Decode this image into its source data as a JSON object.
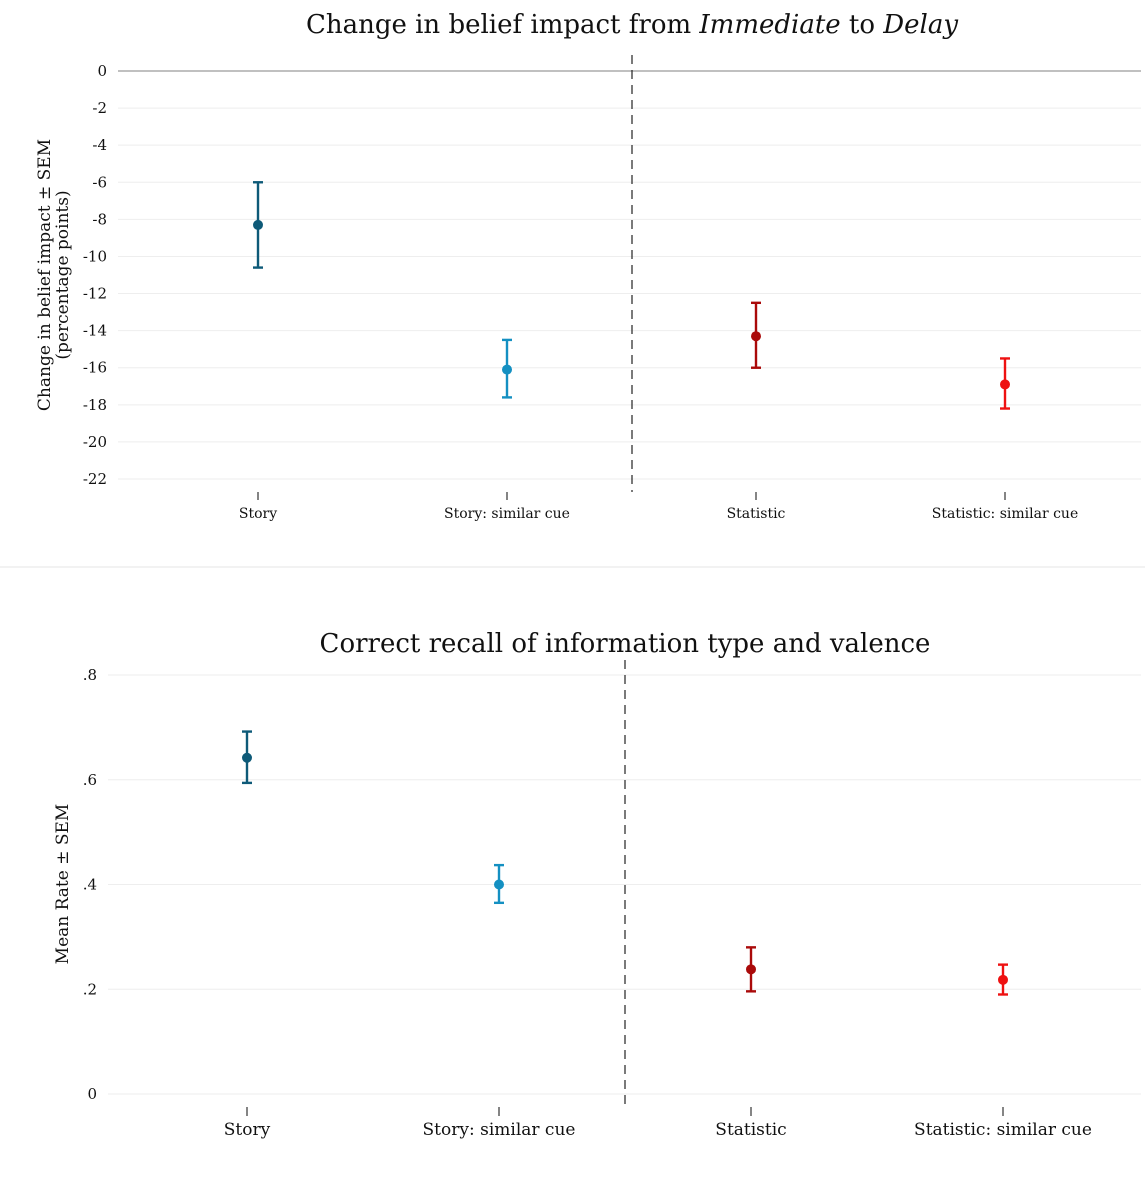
{
  "chart_data": [
    {
      "type": "scatter",
      "title_parts": [
        {
          "text": "Change in belief impact from ",
          "italic": false
        },
        {
          "text": "Immediate",
          "italic": true
        },
        {
          "text": " to ",
          "italic": false
        },
        {
          "text": "Delay",
          "italic": true
        }
      ],
      "ylabel_lines": [
        "Change in belief impact ± SEM",
        "(percentage points)"
      ],
      "ylim": [
        -22,
        0
      ],
      "yticks": [
        {
          "value": 0,
          "label": "0"
        },
        {
          "value": -2,
          "label": "-2"
        },
        {
          "value": -4,
          "label": "-4"
        },
        {
          "value": -6,
          "label": "-6"
        },
        {
          "value": -8,
          "label": "-8"
        },
        {
          "value": -10,
          "label": "-10"
        },
        {
          "value": -12,
          "label": "-12"
        },
        {
          "value": -14,
          "label": "-14"
        },
        {
          "value": -16,
          "label": "-16"
        },
        {
          "value": -18,
          "label": "-18"
        },
        {
          "value": -20,
          "label": "-20"
        },
        {
          "value": -22,
          "label": "-22"
        }
      ],
      "categories": [
        "Story",
        "Story: similar cue",
        "Statistic",
        "Statistic: similar cue"
      ],
      "points": [
        {
          "category": "Story",
          "value": -8.3,
          "low": -10.6,
          "high": -6.0,
          "color": "#0e5a78"
        },
        {
          "category": "Story: similar cue",
          "value": -16.1,
          "low": -17.6,
          "high": -14.5,
          "color": "#1490c2"
        },
        {
          "category": "Statistic",
          "value": -14.3,
          "low": -16.0,
          "high": -12.5,
          "color": "#aa0a0a"
        },
        {
          "category": "Statistic: similar cue",
          "value": -16.9,
          "low": -18.2,
          "high": -15.5,
          "color": "#ee1111"
        }
      ],
      "grid": true,
      "separator": "dashed vertical line between Story: similar cue and Statistic"
    },
    {
      "type": "scatter",
      "title_parts": [
        {
          "text": "Correct recall of information type and valence",
          "italic": false
        }
      ],
      "ylabel_lines": [
        "Mean Rate ± SEM"
      ],
      "ylim": [
        0,
        0.8
      ],
      "yticks": [
        {
          "value": 0,
          "label": "0"
        },
        {
          "value": 0.2,
          "label": ".2"
        },
        {
          "value": 0.4,
          "label": ".4"
        },
        {
          "value": 0.6,
          "label": ".6"
        },
        {
          "value": 0.8,
          "label": ".8"
        }
      ],
      "categories": [
        "Story",
        "Story: similar cue",
        "Statistic",
        "Statistic: similar cue"
      ],
      "points": [
        {
          "category": "Story",
          "value": 0.642,
          "low": 0.594,
          "high": 0.692,
          "color": "#0e5a78"
        },
        {
          "category": "Story: similar cue",
          "value": 0.4,
          "low": 0.365,
          "high": 0.437,
          "color": "#1490c2"
        },
        {
          "category": "Statistic",
          "value": 0.238,
          "low": 0.196,
          "high": 0.28,
          "color": "#aa0a0a"
        },
        {
          "category": "Statistic: similar cue",
          "value": 0.218,
          "low": 0.19,
          "high": 0.247,
          "color": "#ee1111"
        }
      ],
      "grid": true,
      "separator": "dashed vertical line between Story: similar cue and Statistic"
    }
  ]
}
